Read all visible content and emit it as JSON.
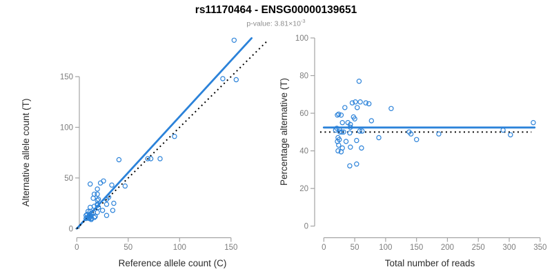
{
  "header": {
    "title": "rs11170464 - ENSG00000139651",
    "subtitle": {
      "text": "p-value: 3.81×10",
      "exponent": "-3"
    }
  },
  "colors": {
    "accent_blue": "#2b82d9",
    "reference_black": "#000000",
    "axis_line": "#a3a3a3",
    "tick_label": "#7d7d7d",
    "axis_title": "#2b2b2b",
    "subtitle_gray": "#8e8e8e"
  },
  "chart_data": [
    {
      "id": "allele-count-scatter",
      "type": "scatter",
      "xlabel": "Reference allele count (C)",
      "ylabel": "Alternative allele count (T)",
      "xticks": [
        0,
        50,
        100,
        150
      ],
      "yticks": [
        0,
        50,
        100,
        150
      ],
      "xlim": [
        0,
        170
      ],
      "ylim": [
        0,
        190
      ],
      "point_style": "open-circle",
      "points": [
        [
          13,
          44
        ],
        [
          16,
          30
        ],
        [
          17,
          34
        ],
        [
          20,
          39
        ],
        [
          23,
          45
        ],
        [
          26,
          47
        ],
        [
          20,
          34
        ],
        [
          13,
          21
        ],
        [
          41,
          68
        ],
        [
          9,
          13
        ],
        [
          10,
          14
        ],
        [
          11,
          17
        ],
        [
          20,
          28
        ],
        [
          21,
          29
        ],
        [
          13,
          17
        ],
        [
          17,
          22
        ],
        [
          20,
          24
        ],
        [
          34,
          43
        ],
        [
          10,
          11
        ],
        [
          12,
          13
        ],
        [
          20,
          23
        ],
        [
          9,
          10
        ],
        [
          13,
          13
        ],
        [
          14,
          15
        ],
        [
          16,
          16
        ],
        [
          21,
          21
        ],
        [
          29,
          29
        ],
        [
          31,
          31
        ],
        [
          12,
          11
        ],
        [
          13,
          12
        ],
        [
          12,
          10
        ],
        [
          20,
          16
        ],
        [
          29,
          24
        ],
        [
          14,
          10
        ],
        [
          18,
          12
        ],
        [
          25,
          18
        ],
        [
          36,
          25
        ],
        [
          14,
          9
        ],
        [
          17,
          11
        ],
        [
          47,
          42
        ],
        [
          29,
          13
        ],
        [
          35,
          18
        ],
        [
          69,
          69
        ],
        [
          72,
          69
        ],
        [
          81,
          69
        ],
        [
          95,
          91
        ],
        [
          142,
          148
        ],
        [
          155,
          147
        ],
        [
          153,
          186
        ]
      ],
      "lines": [
        {
          "name": "fitted-proportion-line",
          "style": "solid",
          "color": "accent",
          "x1": 0,
          "y1": 0,
          "x2": 170,
          "y2": 188
        },
        {
          "name": "identity-line",
          "style": "dotted",
          "color": "black",
          "x1": 0,
          "y1": 0,
          "x2": 185,
          "y2": 185
        }
      ]
    },
    {
      "id": "percentage-vs-reads-scatter",
      "type": "scatter",
      "xlabel": "Total number of reads",
      "ylabel": "Percentage alternative (T)",
      "xticks": [
        0,
        50,
        100,
        150,
        200,
        250,
        300,
        350
      ],
      "yticks": [
        0,
        20,
        40,
        60,
        80,
        100
      ],
      "xlim": [
        0,
        350
      ],
      "ylim": [
        0,
        100
      ],
      "point_style": "open-circle",
      "points": [
        [
          57,
          77
        ],
        [
          46,
          65.5
        ],
        [
          51,
          66
        ],
        [
          59,
          66
        ],
        [
          68,
          65.5
        ],
        [
          73,
          65
        ],
        [
          54,
          63
        ],
        [
          34,
          63
        ],
        [
          109,
          62.5
        ],
        [
          22,
          59
        ],
        [
          24,
          59.5
        ],
        [
          28,
          59
        ],
        [
          48,
          58
        ],
        [
          50,
          57
        ],
        [
          30,
          55
        ],
        [
          39,
          55
        ],
        [
          43,
          54
        ],
        [
          77,
          56
        ],
        [
          21,
          52
        ],
        [
          25,
          51.5
        ],
        [
          43,
          52.5
        ],
        [
          19,
          51
        ],
        [
          26,
          50
        ],
        [
          29,
          50
        ],
        [
          32,
          50
        ],
        [
          42,
          49.5
        ],
        [
          58,
          50.5
        ],
        [
          62,
          50.5
        ],
        [
          23,
          47
        ],
        [
          25,
          46
        ],
        [
          22,
          45
        ],
        [
          36,
          45
        ],
        [
          53,
          45.5
        ],
        [
          24,
          43
        ],
        [
          30,
          41.5
        ],
        [
          43,
          42
        ],
        [
          61,
          41.5
        ],
        [
          23,
          40
        ],
        [
          28,
          39.5
        ],
        [
          89,
          47
        ],
        [
          42,
          32
        ],
        [
          53,
          33
        ],
        [
          138,
          50
        ],
        [
          141,
          49
        ],
        [
          150,
          46
        ],
        [
          186,
          49
        ],
        [
          290,
          51
        ],
        [
          302,
          48.5
        ],
        [
          339,
          55
        ]
      ],
      "lines": [
        {
          "name": "mean-percentage-line",
          "style": "solid",
          "color": "accent",
          "x1": 0,
          "y1": 52.4,
          "x2": 341,
          "y2": 52.4
        },
        {
          "name": "null-50-percent-line",
          "style": "dotted",
          "color": "black",
          "x1": -6,
          "y1": 50,
          "x2": 336,
          "y2": 50
        }
      ]
    }
  ]
}
